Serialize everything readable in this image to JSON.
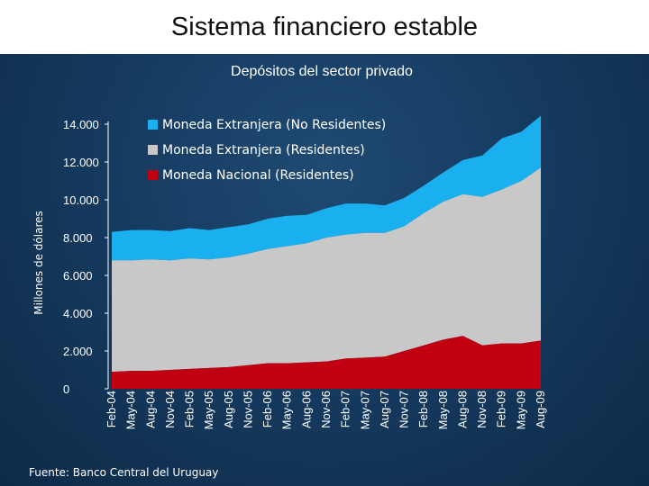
{
  "slide": {
    "title": "Sistema financiero estable",
    "footer": "Fuente: Banco Central del Uruguay"
  },
  "colors": {
    "no_residentes": "#1ab0f0",
    "residentes_me": "#c8c8c8",
    "moneda_nacional": "#c00010"
  },
  "chart_data": {
    "type": "area",
    "stacked": true,
    "title": "Depósitos del sector privado",
    "ylabel": "Millones de dólares",
    "ylim": [
      0,
      14000
    ],
    "yticks": [
      "0",
      "2.000",
      "4.000",
      "6.000",
      "8.000",
      "10.000",
      "12.000",
      "14.000"
    ],
    "categories": [
      "Feb-04",
      "May-04",
      "Aug-04",
      "Nov-04",
      "Feb-05",
      "May-05",
      "Aug-05",
      "Nov-05",
      "Feb-06",
      "May-06",
      "Aug-06",
      "Nov-06",
      "Feb-07",
      "May-07",
      "Aug-07",
      "Nov-07",
      "Feb-08",
      "May-08",
      "Aug-08",
      "Nov-08",
      "Feb-09",
      "May-09",
      "Aug-09"
    ],
    "legend_position": "top-center",
    "series": [
      {
        "name": "Moneda Nacional (Residentes)",
        "color_key": "moneda_nacional",
        "values": [
          900,
          950,
          950,
          1000,
          1050,
          1100,
          1150,
          1250,
          1350,
          1350,
          1400,
          1450,
          1600,
          1650,
          1700,
          2000,
          2300,
          2600,
          2800,
          2300,
          2400,
          2400,
          2550
        ]
      },
      {
        "name": "Moneda Extranjera (Residentes)",
        "color_key": "residentes_me",
        "values": [
          5900,
          5850,
          5900,
          5800,
          5850,
          5750,
          5800,
          5900,
          6050,
          6200,
          6300,
          6550,
          6550,
          6600,
          6550,
          6600,
          7000,
          7300,
          7500,
          7850,
          8150,
          8600,
          9150
        ]
      },
      {
        "name": "Moneda Extranjera (No Residentes)",
        "color_key": "no_residentes",
        "values": [
          1500,
          1600,
          1550,
          1550,
          1600,
          1550,
          1600,
          1550,
          1600,
          1600,
          1500,
          1550,
          1650,
          1550,
          1450,
          1500,
          1450,
          1550,
          1800,
          2200,
          2700,
          2600,
          2750
        ]
      }
    ]
  }
}
